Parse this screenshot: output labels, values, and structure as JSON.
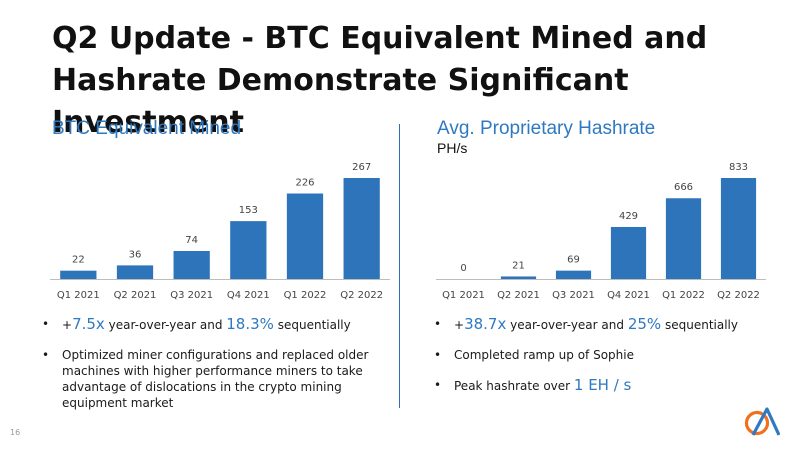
{
  "title": {
    "lead": "Q2 Update - ",
    "rest": "BTC Equivalent Mined and Hashrate Demonstrate Significant Investment"
  },
  "left": {
    "heading": "BTC Equivalent Mined",
    "bullets": [
      {
        "pre": "+",
        "hl": "7.5x",
        "mid": " year-over-year and ",
        "hl2": "18.3%",
        "post": " sequentially"
      },
      {
        "text": "Optimized miner configurations and replaced older machines with higher performance miners to take advantage of dislocations in the crypto mining equipment market"
      }
    ]
  },
  "right": {
    "heading": "Avg. Proprietary Hashrate",
    "unit": "PH/s",
    "bullets": [
      {
        "pre": "+",
        "hl": "38.7x",
        "mid": " year-over-year and ",
        "hl2": "25%",
        "post": " sequentially"
      },
      {
        "text": "Completed ramp up of Sophie"
      },
      {
        "pre": "Peak hashrate over ",
        "hl": "1 EH / s"
      }
    ]
  },
  "chart_data": [
    {
      "type": "bar",
      "title": "BTC Equivalent Mined",
      "categories": [
        "Q1 2021",
        "Q2 2021",
        "Q3 2021",
        "Q4 2021",
        "Q1 2022",
        "Q2 2022"
      ],
      "values": [
        22,
        36,
        74,
        153,
        226,
        267
      ],
      "ylim": [
        0,
        267
      ],
      "xlabel": "",
      "ylabel": ""
    },
    {
      "type": "bar",
      "title": "Avg. Proprietary Hashrate",
      "categories": [
        "Q1 2021",
        "Q2 2021",
        "Q3 2021",
        "Q4 2021",
        "Q1 2022",
        "Q2 2022"
      ],
      "values": [
        0,
        21,
        69,
        429,
        666,
        833
      ],
      "ylim": [
        0,
        833
      ],
      "xlabel": "",
      "ylabel": "PH/s"
    }
  ],
  "colors": {
    "bar": "#2e74bb",
    "accent": "#2f79c1",
    "logo_orange": "#f0701e",
    "logo_blue": "#2f79c1"
  },
  "page_number": "16"
}
